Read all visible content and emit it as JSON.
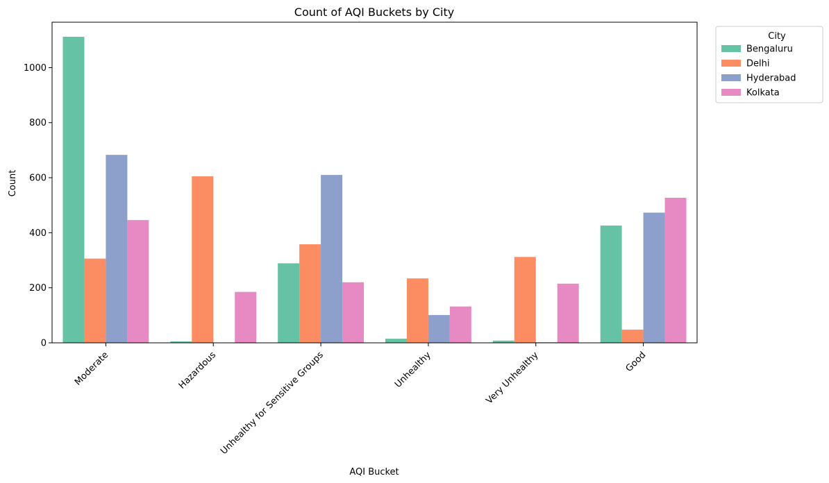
{
  "chart_data": {
    "type": "bar",
    "title": "Count of AQI Buckets by City",
    "xlabel": "AQI Bucket",
    "ylabel": "Count",
    "categories": [
      "Moderate",
      "Hazardous",
      "Unhealthy for Sensitive Groups",
      "Unhealthy",
      "Very Unhealthy",
      "Good"
    ],
    "ylim": [
      0,
      1165
    ],
    "yticks": [
      0,
      200,
      400,
      600,
      800,
      1000
    ],
    "grid": false,
    "legend": {
      "title": "City",
      "placement": "outside-top-right"
    },
    "series": [
      {
        "name": "Bengaluru",
        "color": "#66c2a5",
        "values": [
          1112,
          5,
          289,
          15,
          8,
          426
        ]
      },
      {
        "name": "Delhi",
        "color": "#fc8d62",
        "values": [
          306,
          605,
          358,
          234,
          312,
          48
        ]
      },
      {
        "name": "Hyderabad",
        "color": "#8da0cb",
        "values": [
          683,
          0,
          610,
          101,
          2,
          473
        ]
      },
      {
        "name": "Kolkata",
        "color": "#e78ac3",
        "values": [
          446,
          185,
          220,
          132,
          215,
          527
        ]
      }
    ]
  }
}
